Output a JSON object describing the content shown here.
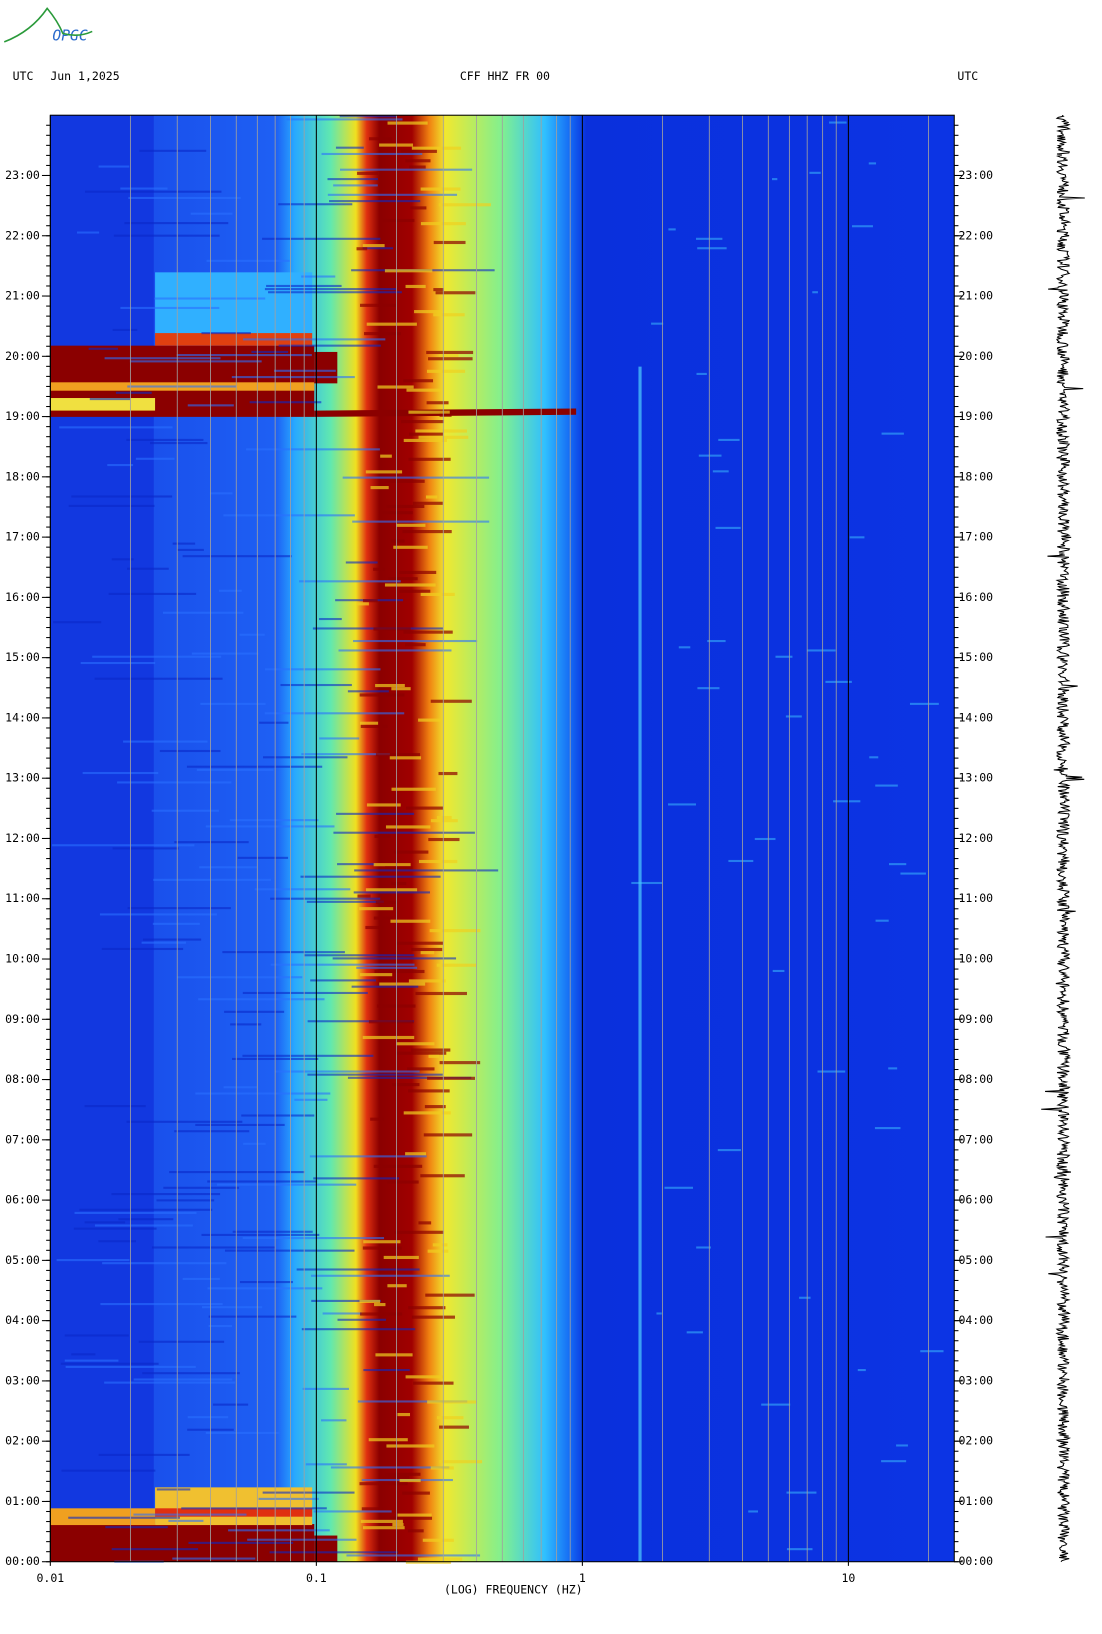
{
  "logo": "OPGC",
  "header": {
    "left_zone": "UTC",
    "date": "Jun 1,2025",
    "station": "CFF HHZ FR 00",
    "right_zone": "UTC"
  },
  "chart_data": {
    "type": "spectrogram",
    "xlabel": "(LOG) FREQUENCY (HZ)",
    "xscale": "log",
    "xlim": [
      0.01,
      25
    ],
    "xticks": [
      0.01,
      0.1,
      1,
      10
    ],
    "ylim": [
      0,
      24
    ],
    "yticks": [
      {
        "value": 0,
        "label": "00:00"
      },
      {
        "value": 1,
        "label": "01:00"
      },
      {
        "value": 2,
        "label": "02:00"
      },
      {
        "value": 3,
        "label": "03:00"
      },
      {
        "value": 4,
        "label": "04:00"
      },
      {
        "value": 5,
        "label": "05:00"
      },
      {
        "value": 6,
        "label": "06:00"
      },
      {
        "value": 7,
        "label": "07:00"
      },
      {
        "value": 8,
        "label": "08:00"
      },
      {
        "value": 9,
        "label": "09:00"
      },
      {
        "value": 10,
        "label": "10:00"
      },
      {
        "value": 11,
        "label": "11:00"
      },
      {
        "value": 12,
        "label": "12:00"
      },
      {
        "value": 13,
        "label": "13:00"
      },
      {
        "value": 14,
        "label": "14:00"
      },
      {
        "value": 15,
        "label": "15:00"
      },
      {
        "value": 16,
        "label": "16:00"
      },
      {
        "value": 17,
        "label": "17:00"
      },
      {
        "value": 18,
        "label": "18:00"
      },
      {
        "value": 19,
        "label": "19:00"
      },
      {
        "value": 20,
        "label": "20:00"
      },
      {
        "value": 21,
        "label": "21:00"
      },
      {
        "value": 22,
        "label": "22:00"
      },
      {
        "value": 23,
        "label": "23:00"
      }
    ]
  }
}
